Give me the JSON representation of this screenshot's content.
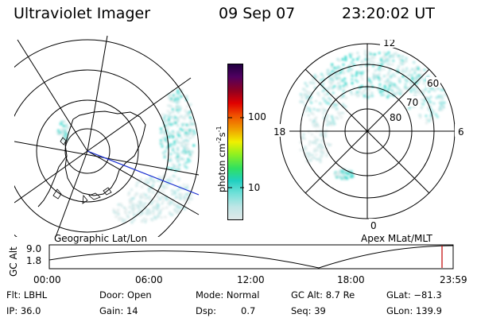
{
  "header": {
    "title": "Ultraviolet Imager",
    "date": "09 Sep 07",
    "time": "23:20:02 UT"
  },
  "panels": {
    "left_label": "Geographic Lat/Lon",
    "right_label": "Apex MLat/MLT"
  },
  "colorbar": {
    "unit_label": "photon cm",
    "unit_exp1": "-2",
    "unit_mid": "s",
    "unit_exp2": "-1",
    "ticks": [
      "100",
      "10"
    ],
    "scale": "log",
    "colors": [
      "#dfe8e8",
      "#bfe6e6",
      "#6fe0d8",
      "#20d0c0",
      "#30e060",
      "#90f020",
      "#f0f000",
      "#f0a000",
      "#f05000",
      "#e00000",
      "#900020",
      "#500060",
      "#200040"
    ]
  },
  "mlt_plot": {
    "hour_labels": [
      "12",
      "18",
      "6",
      "0"
    ],
    "lat_labels": [
      "60",
      "70",
      "80"
    ]
  },
  "altitude_strip": {
    "axis_label": "GC Alt",
    "ymax": "9.0",
    "ymin": "1.8",
    "time_ticks": [
      "00:00",
      "06:00",
      "12:00",
      "18:00",
      "23:59"
    ],
    "marker_color": "#c00000"
  },
  "info": {
    "filter": "Flt: LBHL",
    "ip": "IP: 36.0",
    "door": "Door: Open",
    "gain": "Gain: 14",
    "mode": "Mode: Normal",
    "dsp_label": "Dsp:",
    "dsp_value": "0.7",
    "gc_alt": "GC Alt: 8.7 Re",
    "seq": "Seq: 39",
    "glat": "GLat: −81.3",
    "glon": "GLon: 139.9"
  }
}
